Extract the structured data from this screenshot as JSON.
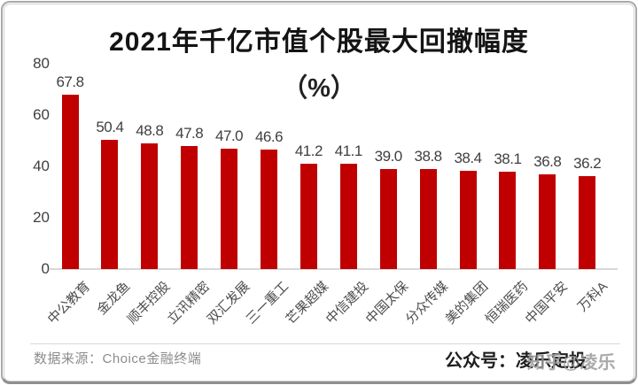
{
  "chart_data": {
    "type": "bar",
    "title": "2021年千亿市值个股最大回撤幅度",
    "subtitle": "（%）",
    "categories": [
      "中公教育",
      "金龙鱼",
      "顺丰控股",
      "立讯精密",
      "双汇发展",
      "三一重工",
      "芒果超媒",
      "中信建投",
      "中国太保",
      "分众传媒",
      "美的集团",
      "恒瑞医药",
      "中国平安",
      "万科A"
    ],
    "values": [
      67.8,
      50.4,
      48.8,
      47.8,
      47.0,
      46.6,
      41.2,
      41.1,
      39.0,
      38.8,
      38.4,
      38.1,
      36.8,
      36.2
    ],
    "y_ticks": [
      0,
      20,
      40,
      60,
      80
    ],
    "ylim": [
      0,
      80
    ],
    "bar_color": "#C00000",
    "grid": false,
    "legend": false,
    "value_labels_decimals": 1
  },
  "footer": {
    "source": "数据来源：Choice金融终端",
    "account_prefix": "公众号：",
    "account_name": "凌乐定投",
    "watermark": "知乎@凌乐"
  }
}
